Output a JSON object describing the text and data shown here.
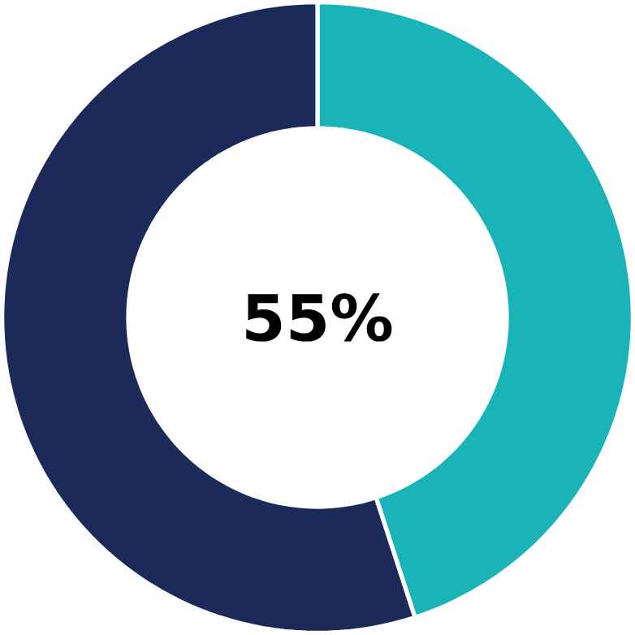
{
  "chart_data": {
    "type": "donut",
    "categories": [
      null,
      null
    ],
    "values": [
      45,
      55
    ],
    "colors": [
      "#1ab4b8",
      "#1c2a5a"
    ],
    "annotations": [
      "55%"
    ]
  }
}
